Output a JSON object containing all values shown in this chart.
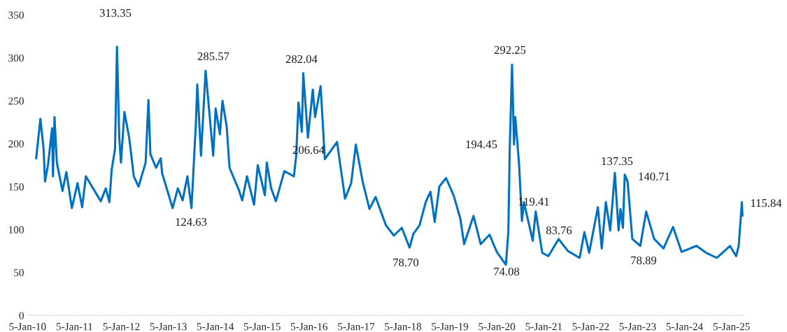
{
  "chart_data": {
    "type": "line",
    "x": [
      "2010-03-13",
      "2010-04-15",
      "2010-05-10",
      "2010-05-21",
      "2010-06-13",
      "2010-07-15",
      "2010-07-22",
      "2010-08-03",
      "2010-08-21",
      "2010-10-04",
      "2010-11-03",
      "2010-12-16",
      "2011-01-29",
      "2011-03-06",
      "2011-04-04",
      "2011-07-29",
      "2011-09-06",
      "2011-10-04",
      "2011-10-22",
      "2011-11-17",
      "2011-12-02",
      "2011-12-20",
      "2012-01-02",
      "2012-01-29",
      "2012-03-06",
      "2012-04-11",
      "2012-05-18",
      "2012-07-12",
      "2012-08-03",
      "2012-08-18",
      "2012-10-01",
      "2012-11-07",
      "2012-11-17",
      "2013-02-07",
      "2013-03-20",
      "2013-04-26",
      "2013-06-02",
      "2013-07-04",
      "2013-08-07",
      "2013-08-18",
      "2013-09-16",
      "2013-10-22",
      "2013-12-20",
      "2014-01-08",
      "2014-02-10",
      "2014-03-02",
      "2014-04-04",
      "2014-04-26",
      "2014-07-08",
      "2014-08-03",
      "2014-09-09",
      "2014-11-03",
      "2014-12-02",
      "2015-01-26",
      "2015-02-10",
      "2015-03-16",
      "2015-04-22",
      "2015-06-27",
      "2015-09-09",
      "2015-09-27",
      "2015-10-15",
      "2015-11-10",
      "2015-11-21",
      "2015-12-27",
      "2016-02-03",
      "2016-02-21",
      "2016-04-04",
      "2016-05-07",
      "2016-08-10",
      "2016-10-11",
      "2016-11-28",
      "2017-01-03",
      "2017-02-25",
      "2017-04-19",
      "2017-06-06",
      "2017-08-25",
      "2017-10-26",
      "2017-12-27",
      "2018-02-25",
      "2018-03-27",
      "2018-05-14",
      "2018-07-01",
      "2018-08-07",
      "2018-09-09",
      "2018-10-15",
      "2018-12-06",
      "2019-02-03",
      "2019-03-27",
      "2019-04-26",
      "2019-07-08",
      "2019-09-02",
      "2019-11-10",
      "2020-01-05",
      "2020-03-16",
      "2020-04-04",
      "2020-04-15",
      "2020-05-03",
      "2020-05-18",
      "2020-05-28",
      "2020-06-13",
      "2020-06-27",
      "2020-07-19",
      "2020-08-03",
      "2020-10-11",
      "2020-11-03",
      "2020-12-24",
      "2021-02-10",
      "2021-04-30",
      "2021-07-12",
      "2021-10-11",
      "2021-11-17",
      "2021-12-24",
      "2022-03-02",
      "2022-04-01",
      "2022-05-03",
      "2022-06-06",
      "2022-07-12",
      "2022-08-10",
      "2022-08-25",
      "2022-09-13",
      "2022-09-27",
      "2022-10-19",
      "2022-11-25",
      "2023-01-26",
      "2023-03-13",
      "2023-05-14",
      "2023-07-26",
      "2023-10-08",
      "2023-12-13",
      "2024-04-08",
      "2024-06-20",
      "2024-09-13",
      "2024-12-24",
      "2025-02-10",
      "2025-03-02",
      "2025-03-27",
      "2025-03-31"
    ],
    "series": [
      {
        "color": "#0070c0",
        "values": [
          183,
          229,
          194,
          156,
          175,
          218,
          162,
          231,
          178,
          145,
          167,
          125,
          154,
          126,
          162,
          133,
          148,
          132,
          170,
          194,
          313,
          207,
          178,
          237,
          207,
          162,
          150,
          178,
          251,
          188,
          172,
          183,
          166,
          125,
          148,
          134,
          162,
          125,
          223,
          269,
          186,
          285,
          186,
          241,
          211,
          250,
          220,
          172,
          146,
          134,
          162,
          129,
          175,
          140,
          178,
          148,
          133,
          168,
          162,
          186,
          248,
          214,
          282,
          207,
          263,
          231,
          267,
          182,
          202,
          136,
          154,
          199,
          156,
          124,
          138,
          105,
          93,
          102,
          79,
          95,
          105,
          132,
          144,
          109,
          150,
          160,
          140,
          113,
          83,
          116,
          83,
          94,
          74,
          59,
          97,
          194,
          292,
          199,
          231,
          202,
          175,
          110,
          132,
          87,
          121,
          73,
          69,
          89,
          75,
          67,
          97,
          73,
          126,
          78,
          132,
          99,
          166,
          99,
          124,
          102,
          164,
          156,
          89,
          81,
          121,
          89,
          78,
          103,
          74,
          81,
          73,
          67,
          81,
          69,
          81,
          132,
          116
        ]
      }
    ],
    "xlim": [
      "2010-01-05",
      "2025-04-10"
    ],
    "xticks": [
      {
        "value": "2010-01-05",
        "label": "5-Jan-10"
      },
      {
        "value": "2011-01-05",
        "label": "5-Jan-11"
      },
      {
        "value": "2012-01-05",
        "label": "5-Jan-12"
      },
      {
        "value": "2013-01-05",
        "label": "5-Jan-13"
      },
      {
        "value": "2014-01-05",
        "label": "5-Jan-14"
      },
      {
        "value": "2015-01-05",
        "label": "5-Jan-15"
      },
      {
        "value": "2016-01-05",
        "label": "5-Jan-16"
      },
      {
        "value": "2017-01-05",
        "label": "5-Jan-17"
      },
      {
        "value": "2018-01-05",
        "label": "5-Jan-18"
      },
      {
        "value": "2019-01-05",
        "label": "5-Jan-19"
      },
      {
        "value": "2020-01-05",
        "label": "5-Jan-20"
      },
      {
        "value": "2021-01-05",
        "label": "5-Jan-21"
      },
      {
        "value": "2022-01-05",
        "label": "5-Jan-22"
      },
      {
        "value": "2023-01-05",
        "label": "5-Jan-23"
      },
      {
        "value": "2024-01-05",
        "label": "5-Jan-24"
      },
      {
        "value": "2025-01-05",
        "label": "5-Jan-25"
      }
    ],
    "ylim": [
      0,
      350
    ],
    "yticks": [
      0,
      50,
      100,
      150,
      200,
      250,
      300,
      350
    ],
    "grid": false,
    "annotations": [
      "313.35",
      "285.57",
      "124.63",
      "282.04",
      "206.64",
      "78.70",
      "194.45",
      "292.25",
      "74.08",
      "119.41",
      "83.76",
      "137.35",
      "140.71",
      "78.89",
      "115.84"
    ]
  }
}
